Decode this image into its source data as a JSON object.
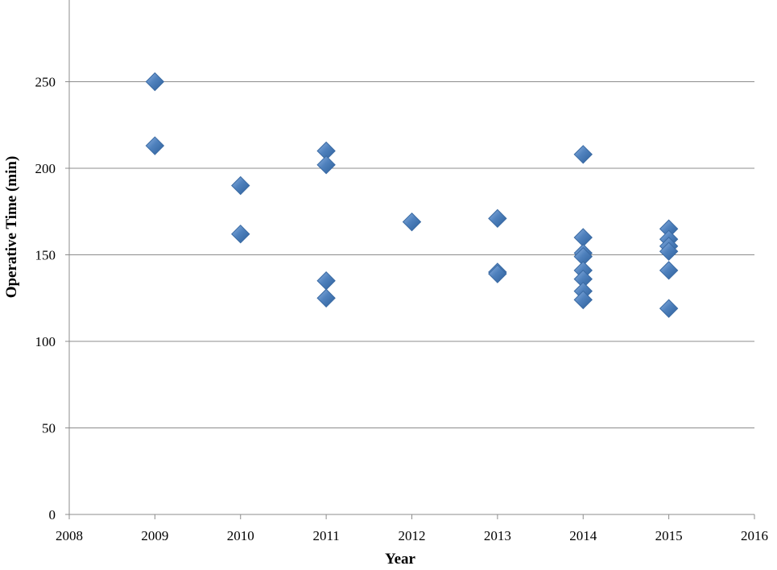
{
  "chart_data": {
    "type": "scatter",
    "title": "",
    "xlabel": "Year",
    "ylabel": "Operative Time (min)",
    "xlim": [
      2008,
      2016
    ],
    "ylim": [
      0,
      300
    ],
    "x_ticks": [
      2008,
      2009,
      2010,
      2011,
      2012,
      2013,
      2014,
      2015,
      2016
    ],
    "y_ticks": [
      0,
      50,
      100,
      150,
      200,
      250
    ],
    "grid": "horizontal",
    "marker": "diamond",
    "marker_color": "#4F81BD",
    "points": [
      {
        "x": 2009,
        "y": 250
      },
      {
        "x": 2009,
        "y": 213
      },
      {
        "x": 2010,
        "y": 190
      },
      {
        "x": 2010,
        "y": 162
      },
      {
        "x": 2011,
        "y": 210
      },
      {
        "x": 2011,
        "y": 202
      },
      {
        "x": 2011,
        "y": 135
      },
      {
        "x": 2011,
        "y": 125
      },
      {
        "x": 2012,
        "y": 169
      },
      {
        "x": 2013,
        "y": 171
      },
      {
        "x": 2013,
        "y": 140
      },
      {
        "x": 2013,
        "y": 139
      },
      {
        "x": 2014,
        "y": 208
      },
      {
        "x": 2014,
        "y": 160
      },
      {
        "x": 2014,
        "y": 151
      },
      {
        "x": 2014,
        "y": 149
      },
      {
        "x": 2014,
        "y": 141
      },
      {
        "x": 2014,
        "y": 136
      },
      {
        "x": 2014,
        "y": 129
      },
      {
        "x": 2014,
        "y": 124
      },
      {
        "x": 2015,
        "y": 165
      },
      {
        "x": 2015,
        "y": 159
      },
      {
        "x": 2015,
        "y": 155
      },
      {
        "x": 2015,
        "y": 152
      },
      {
        "x": 2015,
        "y": 141
      },
      {
        "x": 2015,
        "y": 119
      }
    ]
  }
}
